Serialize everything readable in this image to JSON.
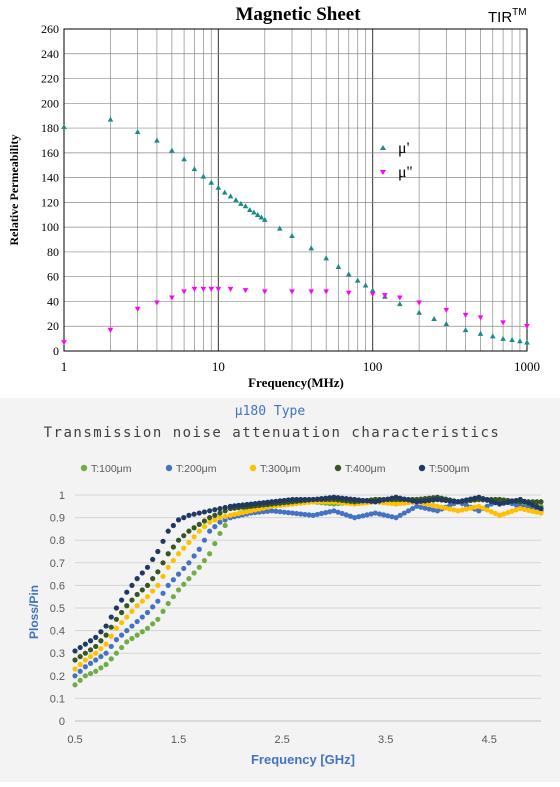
{
  "chart_data": [
    {
      "type": "scatter",
      "title": "Magnetic Sheet",
      "brand": "TIR",
      "brand_sup": "TM",
      "xlabel": "Frequency(MHz)",
      "ylabel": "Relative Permeability",
      "x_scale": "log",
      "xlim": [
        1,
        1000
      ],
      "ylim": [
        0,
        260
      ],
      "x_ticks": [
        "1",
        "10",
        "100",
        "1000"
      ],
      "y_ticks": [
        "0",
        "20",
        "40",
        "60",
        "80",
        "100",
        "120",
        "140",
        "160",
        "180",
        "200",
        "220",
        "240",
        "260"
      ],
      "grid": true,
      "legend_position": "center-right",
      "series": [
        {
          "name": "μ'",
          "color": "#1a8a8a",
          "marker": "triangle-up",
          "x": [
            1,
            2,
            3,
            4,
            5,
            6,
            7,
            8,
            9,
            10,
            11,
            12,
            13,
            14,
            15,
            16,
            17,
            18,
            19,
            20,
            25,
            30,
            40,
            50,
            60,
            70,
            80,
            90,
            100,
            120,
            150,
            200,
            250,
            300,
            400,
            500,
            600,
            700,
            800,
            900,
            1000
          ],
          "y": [
            181,
            187,
            177,
            170,
            162,
            155,
            147,
            141,
            136,
            132,
            128,
            125,
            122,
            119,
            117,
            114,
            112,
            110,
            108,
            106,
            99,
            93,
            83,
            75,
            68,
            62,
            57,
            53,
            49,
            44,
            38,
            31,
            26,
            22,
            17,
            14,
            12,
            10,
            9,
            8,
            7
          ]
        },
        {
          "name": "μ''",
          "color": "#ff00ff",
          "marker": "triangle-down",
          "x": [
            1,
            2,
            3,
            4,
            5,
            6,
            7,
            8,
            9,
            10,
            12,
            15,
            20,
            30,
            40,
            50,
            70,
            100,
            120,
            150,
            200,
            300,
            400,
            500,
            700,
            1000
          ],
          "y": [
            7,
            17,
            34,
            39,
            43,
            48,
            50,
            50,
            50,
            50,
            50,
            49,
            48,
            48,
            48,
            48,
            47,
            46,
            45,
            43,
            39,
            33,
            29,
            27,
            23,
            20
          ]
        }
      ]
    },
    {
      "type": "scatter",
      "title": "μ180 Type",
      "subtitle": "Transmission noise attenuation characteristics",
      "xlabel": "Frequency [GHz]",
      "ylabel": "Ploss/Pin",
      "xlim": [
        0.5,
        5.0
      ],
      "ylim": [
        0,
        1
      ],
      "x_ticks": [
        "0.5",
        "1.5",
        "2.5",
        "3.5",
        "4.5"
      ],
      "y_ticks": [
        "0",
        "0.1",
        "0.2",
        "0.3",
        "0.4",
        "0.5",
        "0.6",
        "0.7",
        "0.8",
        "0.9",
        "1"
      ],
      "grid": true,
      "legend_position": "top",
      "series": [
        {
          "name": "T:100μm",
          "color": "#70ad47",
          "x": [
            0.5,
            0.6,
            0.7,
            0.8,
            0.9,
            1.0,
            1.1,
            1.2,
            1.3,
            1.4,
            1.5,
            1.6,
            1.7,
            1.8,
            1.9,
            2.0,
            2.1,
            2.2,
            2.4,
            2.6,
            2.8,
            3.0,
            3.2,
            3.4,
            3.6,
            3.8,
            4.0,
            4.2,
            4.4,
            4.6,
            4.8,
            5.0
          ],
          "y": [
            0.16,
            0.2,
            0.22,
            0.25,
            0.3,
            0.35,
            0.38,
            0.41,
            0.45,
            0.52,
            0.58,
            0.63,
            0.68,
            0.74,
            0.83,
            0.9,
            0.92,
            0.94,
            0.96,
            0.97,
            0.97,
            0.96,
            0.97,
            0.98,
            0.97,
            0.98,
            0.98,
            0.97,
            0.98,
            0.97,
            0.96,
            0.95
          ]
        },
        {
          "name": "T:200μm",
          "color": "#4472c4",
          "x": [
            0.5,
            0.6,
            0.7,
            0.8,
            0.9,
            1.0,
            1.1,
            1.2,
            1.3,
            1.4,
            1.5,
            1.6,
            1.7,
            1.8,
            1.9,
            2.0,
            2.2,
            2.4,
            2.6,
            2.8,
            3.0,
            3.2,
            3.4,
            3.6,
            3.8,
            4.0,
            4.2,
            4.4,
            4.6,
            4.8,
            5.0
          ],
          "y": [
            0.2,
            0.24,
            0.27,
            0.3,
            0.36,
            0.4,
            0.44,
            0.48,
            0.53,
            0.6,
            0.65,
            0.7,
            0.76,
            0.84,
            0.88,
            0.9,
            0.92,
            0.93,
            0.92,
            0.91,
            0.93,
            0.9,
            0.92,
            0.9,
            0.95,
            0.93,
            0.97,
            0.93,
            0.98,
            0.95,
            0.93
          ]
        },
        {
          "name": "T:300μm",
          "color": "#ffc000",
          "x": [
            0.5,
            0.6,
            0.7,
            0.8,
            0.9,
            1.0,
            1.1,
            1.2,
            1.3,
            1.4,
            1.5,
            1.6,
            1.7,
            1.8,
            1.9,
            2.0,
            2.2,
            2.4,
            2.6,
            2.8,
            3.0,
            3.2,
            3.4,
            3.6,
            3.8,
            4.0,
            4.2,
            4.4,
            4.6,
            4.8,
            5.0
          ],
          "y": [
            0.23,
            0.27,
            0.3,
            0.34,
            0.41,
            0.46,
            0.51,
            0.55,
            0.6,
            0.68,
            0.74,
            0.79,
            0.84,
            0.88,
            0.9,
            0.91,
            0.93,
            0.95,
            0.96,
            0.97,
            0.97,
            0.96,
            0.97,
            0.96,
            0.97,
            0.95,
            0.93,
            0.95,
            0.91,
            0.94,
            0.92
          ]
        },
        {
          "name": "T:400μm",
          "color": "#375623",
          "x": [
            0.5,
            0.6,
            0.7,
            0.8,
            0.9,
            1.0,
            1.1,
            1.2,
            1.3,
            1.4,
            1.5,
            1.6,
            1.7,
            1.8,
            1.9,
            2.0,
            2.2,
            2.4,
            2.6,
            2.8,
            3.0,
            3.2,
            3.4,
            3.6,
            3.8,
            4.0,
            4.2,
            4.4,
            4.6,
            4.8,
            5.0
          ],
          "y": [
            0.27,
            0.3,
            0.33,
            0.38,
            0.45,
            0.51,
            0.56,
            0.6,
            0.66,
            0.74,
            0.8,
            0.84,
            0.87,
            0.9,
            0.92,
            0.94,
            0.95,
            0.96,
            0.97,
            0.98,
            0.98,
            0.97,
            0.98,
            0.98,
            0.98,
            0.99,
            0.97,
            0.98,
            0.98,
            0.97,
            0.97
          ]
        },
        {
          "name": "T:500μm",
          "color": "#203864",
          "x": [
            0.5,
            0.6,
            0.7,
            0.8,
            0.9,
            1.0,
            1.1,
            1.2,
            1.3,
            1.4,
            1.5,
            1.6,
            1.7,
            1.8,
            1.9,
            2.0,
            2.2,
            2.4,
            2.6,
            2.8,
            3.0,
            3.2,
            3.4,
            3.6,
            3.8,
            4.0,
            4.2,
            4.4,
            4.6,
            4.8,
            5.0
          ],
          "y": [
            0.31,
            0.34,
            0.37,
            0.42,
            0.5,
            0.57,
            0.63,
            0.68,
            0.75,
            0.84,
            0.89,
            0.91,
            0.92,
            0.93,
            0.94,
            0.95,
            0.96,
            0.97,
            0.98,
            0.98,
            0.99,
            0.98,
            0.97,
            0.99,
            0.97,
            0.98,
            0.97,
            0.99,
            0.96,
            0.98,
            0.94
          ]
        }
      ]
    }
  ]
}
